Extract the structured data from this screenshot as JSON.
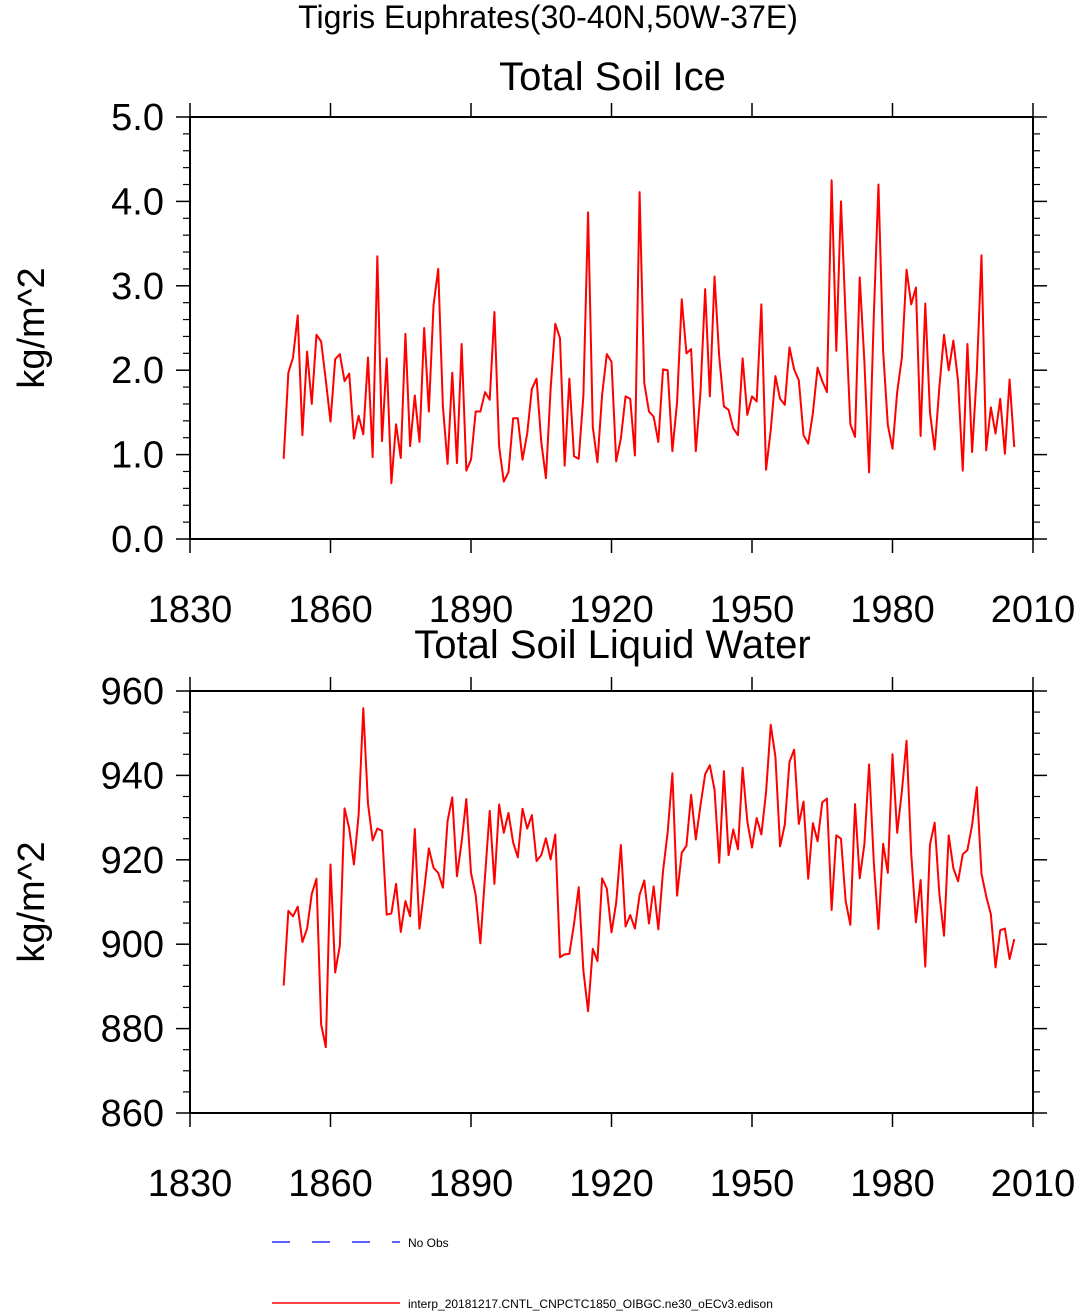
{
  "figure_title": "Tigris Euphrates(30-40N,50W-37E)",
  "legend": [
    {
      "label": "No Obs",
      "color": "#0000ff",
      "style": "dashed"
    },
    {
      "label": "interp_20181217.CNTL_CNPCTC1850_OIBGC.ne30_oECv3.edison",
      "color": "#ff0000",
      "style": "solid"
    }
  ],
  "chart_data": [
    {
      "type": "line",
      "title": "Total Soil Ice",
      "xlabel": "",
      "ylabel": "kg/m^2",
      "xlim": [
        1830,
        2010
      ],
      "ylim": [
        0.0,
        5.0
      ],
      "xticks": [
        "1830",
        "1860",
        "1890",
        "1920",
        "1950",
        "1980",
        "2010"
      ],
      "yticks": [
        "0.0",
        "1.0",
        "2.0",
        "3.0",
        "4.0",
        "5.0"
      ],
      "series": [
        {
          "name": "interp_20181217.CNTL_CNPCTC1850_OIBGC.ne30_oECv3.edison",
          "color": "#ff0000",
          "x_start": 1850,
          "x_step": 1,
          "values": [
            0.95,
            1.97,
            2.15,
            2.65,
            1.23,
            2.22,
            1.6,
            2.42,
            2.34,
            1.88,
            1.39,
            2.13,
            2.19,
            1.87,
            1.96,
            1.19,
            1.46,
            1.24,
            2.15,
            0.97,
            3.35,
            1.16,
            2.14,
            0.66,
            1.36,
            0.96,
            2.43,
            1.1,
            1.7,
            1.15,
            2.5,
            1.51,
            2.77,
            3.2,
            1.57,
            0.89,
            1.97,
            0.9,
            2.31,
            0.81,
            0.94,
            1.51,
            1.51,
            1.74,
            1.65,
            2.69,
            1.1,
            0.68,
            0.79,
            1.43,
            1.43,
            0.94,
            1.25,
            1.78,
            1.9,
            1.15,
            0.72,
            1.78,
            2.55,
            2.38,
            0.87,
            1.9,
            0.98,
            0.95,
            1.7,
            3.87,
            1.33,
            0.91,
            1.71,
            2.19,
            2.1,
            0.92,
            1.19,
            1.69,
            1.66,
            0.99,
            4.11,
            1.85,
            1.51,
            1.45,
            1.15,
            2.01,
            2.0,
            1.04,
            1.62,
            2.84,
            2.2,
            2.25,
            1.04,
            1.74,
            2.96,
            1.69,
            3.11,
            2.16,
            1.57,
            1.53,
            1.31,
            1.23,
            2.14,
            1.47,
            1.69,
            1.63,
            2.78,
            0.82,
            1.29,
            1.93,
            1.66,
            1.59,
            2.27,
            2.01,
            1.88,
            1.23,
            1.13,
            1.49,
            2.03,
            1.87,
            1.74,
            4.25,
            2.23,
            4.0,
            2.62,
            1.36,
            1.21,
            3.1,
            2.1,
            0.79,
            2.63,
            4.2,
            2.23,
            1.35,
            1.07,
            1.74,
            2.15,
            3.19,
            2.78,
            2.98,
            1.22,
            2.79,
            1.5,
            1.06,
            1.79,
            2.42,
            2.0,
            2.35,
            1.87,
            0.81,
            2.31,
            1.03,
            1.97,
            3.36,
            1.05,
            1.56,
            1.25,
            1.66,
            1.01,
            1.89,
            1.09
          ]
        }
      ]
    },
    {
      "type": "line",
      "title": "Total Soil Liquid Water",
      "xlabel": "",
      "ylabel": "kg/m^2",
      "xlim": [
        1830,
        2010
      ],
      "ylim": [
        860,
        960
      ],
      "xticks": [
        "1830",
        "1860",
        "1890",
        "1920",
        "1950",
        "1980",
        "2010"
      ],
      "yticks": [
        "860",
        "880",
        "900",
        "920",
        "940",
        "960"
      ],
      "series": [
        {
          "name": "interp_20181217.CNTL_CNPCTC1850_OIBGC.ne30_oECv3.edison",
          "color": "#ff0000",
          "x_start": 1850,
          "x_step": 1,
          "values": [
            890.2,
            907.9,
            906.6,
            908.9,
            900.5,
            903.7,
            911.9,
            915.5,
            881.0,
            875.6,
            918.9,
            893.3,
            899.7,
            932.2,
            927.4,
            918.9,
            930.6,
            955.9,
            933.3,
            924.6,
            927.4,
            926.9,
            907.0,
            907.3,
            914.3,
            902.9,
            910.2,
            906.6,
            927.3,
            903.7,
            912.8,
            922.7,
            918.1,
            916.9,
            913.4,
            929.2,
            934.8,
            916.1,
            924.2,
            934.4,
            916.9,
            911.7,
            900.2,
            916.2,
            931.6,
            914.3,
            933.1,
            926.4,
            931.1,
            924.1,
            920.6,
            932.1,
            927.4,
            930.6,
            919.7,
            921.1,
            925.1,
            920.1,
            926.0,
            896.9,
            897.6,
            897.7,
            904.8,
            913.5,
            893.7,
            884.1,
            898.9,
            896.0,
            915.6,
            913.2,
            902.8,
            909.8,
            923.5,
            904.2,
            906.9,
            903.7,
            911.7,
            915.1,
            904.9,
            913.7,
            903.5,
            917.3,
            926.6,
            940.5,
            911.5,
            921.7,
            923.3,
            935.4,
            924.8,
            932.9,
            940.3,
            942.4,
            936.6,
            919.3,
            941.0,
            921.1,
            927.2,
            922.5,
            941.8,
            929.1,
            922.9,
            929.9,
            926.0,
            936.0,
            952.0,
            944.4,
            923.2,
            928.3,
            943.2,
            946.1,
            928.5,
            933.8,
            915.5,
            928.7,
            924.4,
            933.6,
            934.5,
            908.1,
            925.8,
            925.0,
            910.2,
            904.6,
            933.2,
            915.6,
            923.7,
            942.6,
            919.6,
            903.6,
            923.8,
            916.9,
            945.0,
            926.4,
            936.2,
            948.2,
            921.4,
            905.2,
            915.2,
            894.7,
            923.6,
            928.8,
            912.0,
            902.0,
            925.8,
            918.0,
            914.9,
            921.3,
            922.3,
            928.3,
            937.2,
            916.7,
            911.4,
            907.1,
            894.5,
            903.3,
            903.7,
            896.5,
            901.2
          ]
        }
      ]
    }
  ]
}
